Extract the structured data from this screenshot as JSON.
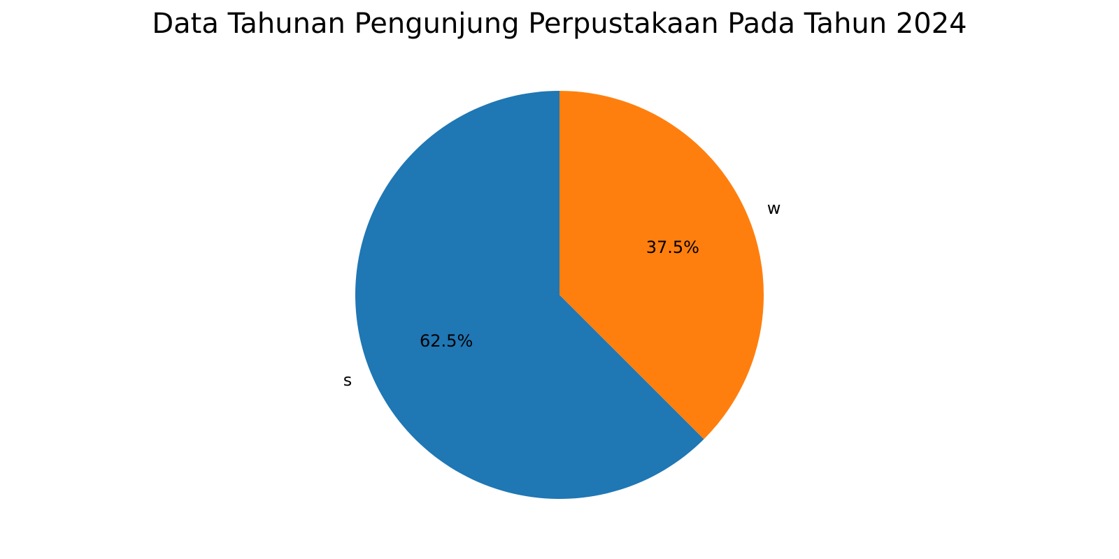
{
  "chart_data": {
    "type": "pie",
    "title": "Data Tahunan Pengunjung Perpustakaan Pada Tahun 2024",
    "categories": [
      "s",
      "w"
    ],
    "values": [
      62.5,
      37.5
    ],
    "value_labels": [
      "62.5%",
      "37.5%"
    ],
    "colors": [
      "#1f77b4",
      "#ff7f0e"
    ],
    "start_angle_deg": 90,
    "direction": "counterclockwise",
    "legend": false
  }
}
